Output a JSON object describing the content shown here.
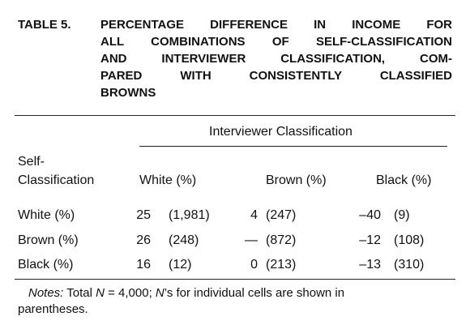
{
  "table_label": "TABLE 5.",
  "title_lines": [
    "PERCENTAGE DIFFERENCE IN INCOME FOR",
    "ALL COMBINATIONS OF SELF-CLASSIFICATION",
    "AND INTERVIEWER CLASSIFICATION, COM-",
    "PARED WITH CONSISTENTLY CLASSIFIED",
    "BROWNS"
  ],
  "table": {
    "spanner": "Interviewer Classification",
    "stub_header": [
      "Self-",
      "Classification"
    ],
    "columns": [
      "White (%)",
      "Brown (%)",
      "Black (%)"
    ],
    "rows": [
      {
        "label": "White (%)",
        "cells": [
          [
            "25",
            "(1,981)"
          ],
          [
            "4",
            "(247)"
          ],
          [
            "–40",
            "(9)"
          ]
        ]
      },
      {
        "label": "Brown (%)",
        "cells": [
          [
            "26",
            "(248)"
          ],
          [
            "—",
            "(872)"
          ],
          [
            "–12",
            "(108)"
          ]
        ]
      },
      {
        "label": "Black (%)",
        "cells": [
          [
            "16",
            "(12)"
          ],
          [
            "0",
            "(213)"
          ],
          [
            "–13",
            "(310)"
          ]
        ]
      }
    ]
  },
  "notes": [
    "Notes:",
    " Total ",
    "N",
    " = 4,000; ",
    "N",
    "’s for individual cells are shown in parentheses."
  ]
}
